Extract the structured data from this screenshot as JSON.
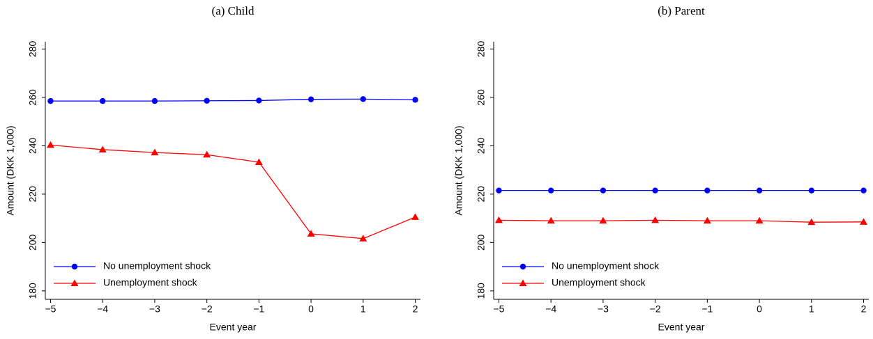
{
  "chart_data": [
    {
      "type": "line",
      "title": "(a) Child",
      "xlabel": "Event year",
      "ylabel": "Amount (DKK 1,000)",
      "x": [
        -5,
        -4,
        -3,
        -2,
        -1,
        0,
        1,
        2
      ],
      "series": [
        {
          "name": "No unemployment shock",
          "color": "#0000ff",
          "marker": "circle",
          "values": [
            258.5,
            258.5,
            258.5,
            258.6,
            258.7,
            259.2,
            259.3,
            259.0
          ]
        },
        {
          "name": "Unemployment shock",
          "color": "#ff0000",
          "marker": "triangle",
          "values": [
            240.3,
            238.4,
            237.2,
            236.3,
            233.2,
            203.6,
            201.6,
            210.5
          ]
        }
      ],
      "xlim": [
        -5.1,
        2.1
      ],
      "ylim": [
        176.5,
        283
      ],
      "xticks": [
        {
          "value": -5,
          "label": "−5"
        },
        {
          "value": -4,
          "label": "−4"
        },
        {
          "value": -3,
          "label": "−3"
        },
        {
          "value": -2,
          "label": "−2"
        },
        {
          "value": -1,
          "label": "−1"
        },
        0,
        1,
        2
      ],
      "yticks": [
        180,
        200,
        220,
        240,
        260,
        280
      ],
      "grid": false,
      "legend": "lower left"
    },
    {
      "type": "line",
      "title": "(b) Parent",
      "xlabel": "Event year",
      "ylabel": "Amount (DKK 1,000)",
      "x": [
        -5,
        -4,
        -3,
        -2,
        -1,
        0,
        1,
        2
      ],
      "series": [
        {
          "name": "No unemployment shock",
          "color": "#0000ff",
          "marker": "circle",
          "values": [
            221.5,
            221.5,
            221.5,
            221.5,
            221.5,
            221.5,
            221.5,
            221.5
          ]
        },
        {
          "name": "Unemployment shock",
          "color": "#ff0000",
          "marker": "triangle",
          "values": [
            209.2,
            209.0,
            209.0,
            209.2,
            209.0,
            209.0,
            208.4,
            208.5
          ]
        }
      ],
      "xlim": [
        -5.1,
        2.1
      ],
      "ylim": [
        176.5,
        283
      ],
      "xticks": [
        {
          "value": -5,
          "label": "−5"
        },
        {
          "value": -4,
          "label": "−4"
        },
        {
          "value": -3,
          "label": "−3"
        },
        {
          "value": -2,
          "label": "−2"
        },
        {
          "value": -1,
          "label": "−1"
        },
        0,
        1,
        2
      ],
      "yticks": [
        180,
        200,
        220,
        240,
        260,
        280
      ],
      "grid": false,
      "legend": "lower left"
    }
  ]
}
